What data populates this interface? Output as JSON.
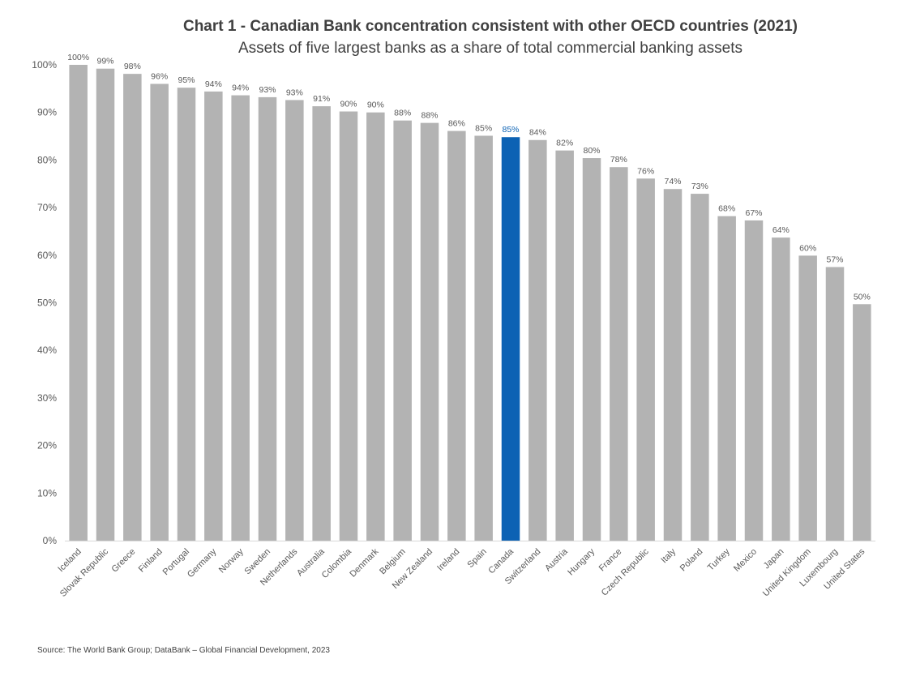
{
  "chart_data": {
    "type": "bar",
    "title": "Chart 1 - Canadian Bank concentration consistent with other OECD countries (2021)",
    "subtitle": "Assets of five largest banks as a share of total commercial banking assets",
    "source": "Source: The World Bank Group; DataBank – Global Financial Development,  2023",
    "ylim": [
      0,
      100
    ],
    "yticks": [
      "0%",
      "10%",
      "20%",
      "30%",
      "40%",
      "50%",
      "60%",
      "70%",
      "80%",
      "90%",
      "100%"
    ],
    "grid": false,
    "categories": [
      "Iceland",
      "Slovak Republic",
      "Greece",
      "Finland",
      "Portugal",
      "Germany",
      "Norway",
      "Sweden",
      "Netherlands",
      "Australia",
      "Colombia",
      "Denmark",
      "Belgium",
      "New Zealand",
      "Ireland",
      "Spain",
      "Canada",
      "Switzerland",
      "Austria",
      "Hungary",
      "France",
      "Czech Republic",
      "Italy",
      "Poland",
      "Turkey",
      "Mexico",
      "Japan",
      "United Kingdom",
      "Luxembourg",
      "United States"
    ],
    "values": [
      100,
      99.2,
      98.1,
      96,
      95.2,
      94.4,
      93.6,
      93.2,
      92.6,
      91.3,
      90.2,
      90,
      88.3,
      87.8,
      86.1,
      85.1,
      84.8,
      84.2,
      82,
      80.4,
      78.5,
      76.1,
      73.9,
      72.9,
      68.2,
      67.3,
      63.7,
      59.9,
      57.5,
      49.7
    ],
    "data_labels": [
      "100%",
      "99%",
      "98%",
      "96%",
      "95%",
      "94%",
      "94%",
      "93%",
      "93%",
      "91%",
      "90%",
      "90%",
      "88%",
      "88%",
      "86%",
      "85%",
      "85%",
      "84%",
      "82%",
      "80%",
      "78%",
      "76%",
      "74%",
      "73%",
      "68%",
      "67%",
      "64%",
      "60%",
      "57%",
      "50%"
    ],
    "bar_color": "#b3b3b3",
    "highlight_color": "#0c62b4",
    "highlight_category": "Canada",
    "label_color": "#595959"
  }
}
